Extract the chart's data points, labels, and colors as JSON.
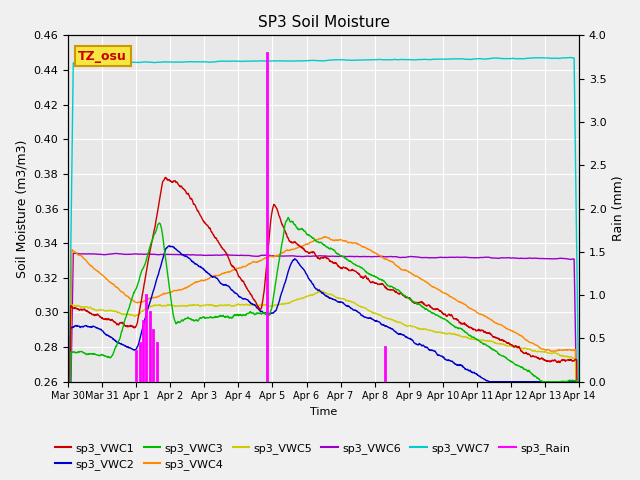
{
  "title": "SP3 Soil Moisture",
  "xlabel": "Time",
  "ylabel_left": "Soil Moisture (m3/m3)",
  "ylabel_right": "Rain (mm)",
  "ylim_left": [
    0.26,
    0.46
  ],
  "ylim_right": [
    0.0,
    4.0
  ],
  "plot_bg_color": "#e8e8e8",
  "fig_bg_color": "#f0f0f0",
  "annotation_text": "TZ_osu",
  "annotation_fg": "#cc0000",
  "annotation_bg": "#f5e642",
  "annotation_border": "#cc9900",
  "series_colors": {
    "sp3_VWC1": "#cc0000",
    "sp3_VWC2": "#0000cc",
    "sp3_VWC3": "#00bb00",
    "sp3_VWC4": "#ff8800",
    "sp3_VWC5": "#cccc00",
    "sp3_VWC6": "#9900cc",
    "sp3_VWC7": "#00cccc",
    "sp3_Rain": "#ff00ff"
  },
  "xtick_labels": [
    "Mar 30",
    "Mar 31",
    "Apr 1",
    "Apr 2",
    "Apr 3",
    "Apr 4",
    "Apr 5",
    "Apr 6",
    "Apr 7",
    "Apr 8",
    "Apr 9",
    "Apr 10",
    "Apr 11",
    "Apr 12",
    "Apr 13",
    "Apr 14"
  ],
  "yticks_left": [
    0.26,
    0.28,
    0.3,
    0.32,
    0.34,
    0.36,
    0.38,
    0.4,
    0.42,
    0.44,
    0.46
  ],
  "yticks_right": [
    0.0,
    0.5,
    1.0,
    1.5,
    2.0,
    2.5,
    3.0,
    3.5,
    4.0
  ],
  "legend_row1": [
    "sp3_VWC1",
    "sp3_VWC2",
    "sp3_VWC3",
    "sp3_VWC4",
    "sp3_VWC5",
    "sp3_VWC6"
  ],
  "legend_row2": [
    "sp3_VWC7",
    "sp3_Rain"
  ]
}
